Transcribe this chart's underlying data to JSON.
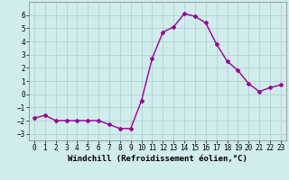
{
  "x": [
    0,
    1,
    2,
    3,
    4,
    5,
    6,
    7,
    8,
    9,
    10,
    11,
    12,
    13,
    14,
    15,
    16,
    17,
    18,
    19,
    20,
    21,
    22,
    23
  ],
  "y": [
    -1.8,
    -1.6,
    -2.0,
    -2.0,
    -2.0,
    -2.0,
    -2.0,
    -2.3,
    -2.6,
    -2.6,
    -0.5,
    2.7,
    4.7,
    5.1,
    6.1,
    5.9,
    5.4,
    3.8,
    2.5,
    1.8,
    0.8,
    0.2,
    0.5,
    0.7
  ],
  "line_color": "#990099",
  "marker": "D",
  "markersize": 2.0,
  "linewidth": 1.0,
  "bg_color": "#d0ecec",
  "grid_color": "#b0cccc",
  "xlabel": "Windchill (Refroidissement éolien,°C)",
  "xlabel_fontsize": 6.5,
  "tick_fontsize": 5.5,
  "ylim": [
    -3.5,
    7.0
  ],
  "yticks": [
    -3,
    -2,
    -1,
    0,
    1,
    2,
    3,
    4,
    5,
    6
  ],
  "xticks": [
    0,
    1,
    2,
    3,
    4,
    5,
    6,
    7,
    8,
    9,
    10,
    11,
    12,
    13,
    14,
    15,
    16,
    17,
    18,
    19,
    20,
    21,
    22,
    23
  ],
  "spine_color": "#808080"
}
